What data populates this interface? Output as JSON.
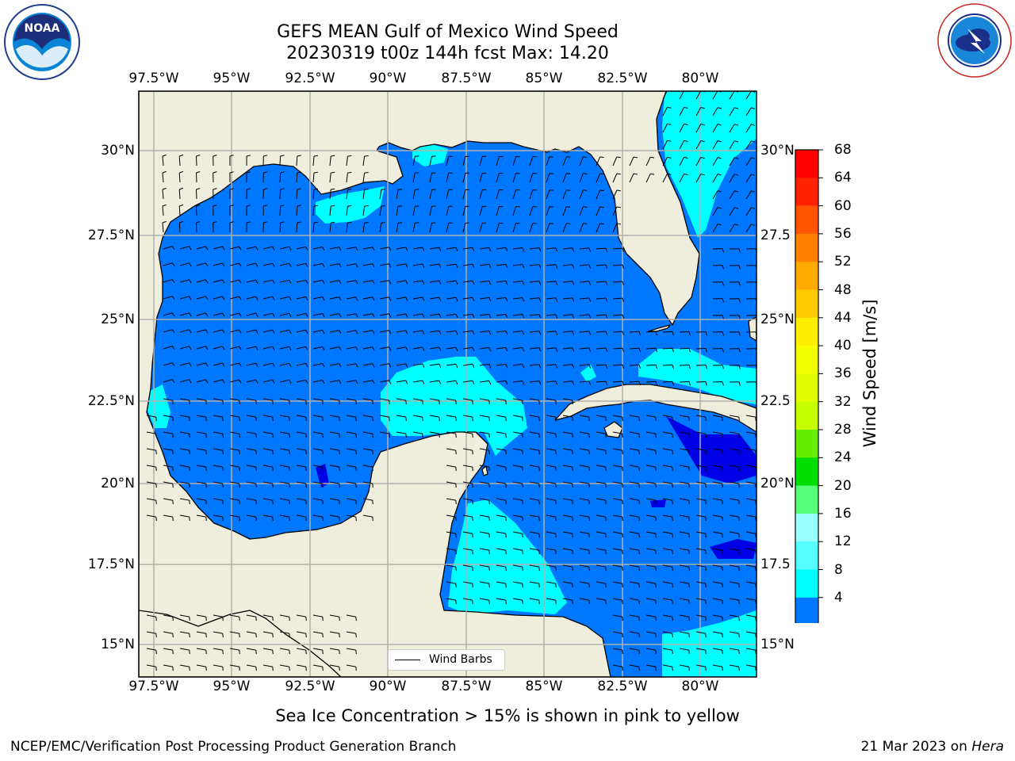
{
  "header": {
    "title_line1": "GEFS MEAN Gulf of Mexico Wind Speed",
    "title_line2": "20230319 t00z 144h fcst   Max: 14.20"
  },
  "logos": {
    "noaa_text": "NOAA",
    "noaa_ring_text": "NATIONAL OCEANIC AND ATMOSPHERIC ADMINISTRATION · U.S. DEPARTMENT OF COMMERCE",
    "nws_ring_text": "NATIONAL WEATHER SERVICE"
  },
  "axes": {
    "lon_ticks": [
      "97.5°W",
      "95°W",
      "92.5°W",
      "90°W",
      "87.5°W",
      "85°W",
      "82.5°W",
      "80°W"
    ],
    "lat_ticks_left": [
      "30°N",
      "27.5°N",
      "25°N",
      "22.5°N",
      "20°N",
      "17.5°N",
      "15°N"
    ],
    "lat_ticks_right": [
      "30°N",
      "27.5",
      "25°N",
      "22.5",
      "20°N",
      "17.5",
      "15°N"
    ]
  },
  "colorbar": {
    "label": "Wind Speed [m/s]",
    "ticks": [
      "68",
      "64",
      "60",
      "56",
      "52",
      "48",
      "44",
      "40",
      "36",
      "32",
      "28",
      "24",
      "20",
      "16",
      "12",
      "8",
      "4"
    ],
    "colors": [
      "#ff0000",
      "#ff2200",
      "#ff5500",
      "#ff8000",
      "#ffaa00",
      "#ffcc00",
      "#ffee00",
      "#f2ff00",
      "#e0ff00",
      "#c8ff00",
      "#66ee00",
      "#00dd00",
      "#55ff77",
      "#99ffff",
      "#55ffff",
      "#00ffff",
      "#0077ff"
    ],
    "extend_color": "#0000e6"
  },
  "map": {
    "land_color": "#efeedc",
    "ocean_base": "#0077ff",
    "cyan": "#00ffff",
    "dark_blue": "#0000e6",
    "grid_color": "#b0b0b0"
  },
  "legend": {
    "label": "Wind Barbs"
  },
  "caption": "Sea Ice Concentration > 15% is shown in pink to yellow",
  "footer": {
    "left": "NCEP/EMC/Verification Post Processing Product Generation Branch",
    "right_prefix": "21 Mar 2023 on ",
    "right_host": "Hera"
  }
}
